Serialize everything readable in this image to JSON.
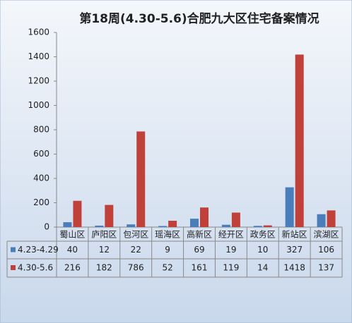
{
  "chart_data": {
    "type": "bar",
    "title": "第18周(4.30-5.6)合肥九大区住宅备案情况",
    "categories": [
      "蜀山区",
      "庐阳区",
      "包河区",
      "瑶海区",
      "高新区",
      "经开区",
      "政务区",
      "新站区",
      "滨湖区"
    ],
    "series": [
      {
        "name": "4.23-4.29",
        "color": "#4a7ebb",
        "values": [
          40,
          12,
          22,
          9,
          69,
          19,
          10,
          327,
          106
        ]
      },
      {
        "name": "4.30-5.6",
        "color": "#c0403a",
        "values": [
          216,
          182,
          786,
          52,
          161,
          119,
          14,
          1418,
          137
        ]
      }
    ],
    "ylim": [
      0,
      1600
    ],
    "yticks": [
      0,
      200,
      400,
      600,
      800,
      1000,
      1200,
      1400,
      1600
    ]
  }
}
